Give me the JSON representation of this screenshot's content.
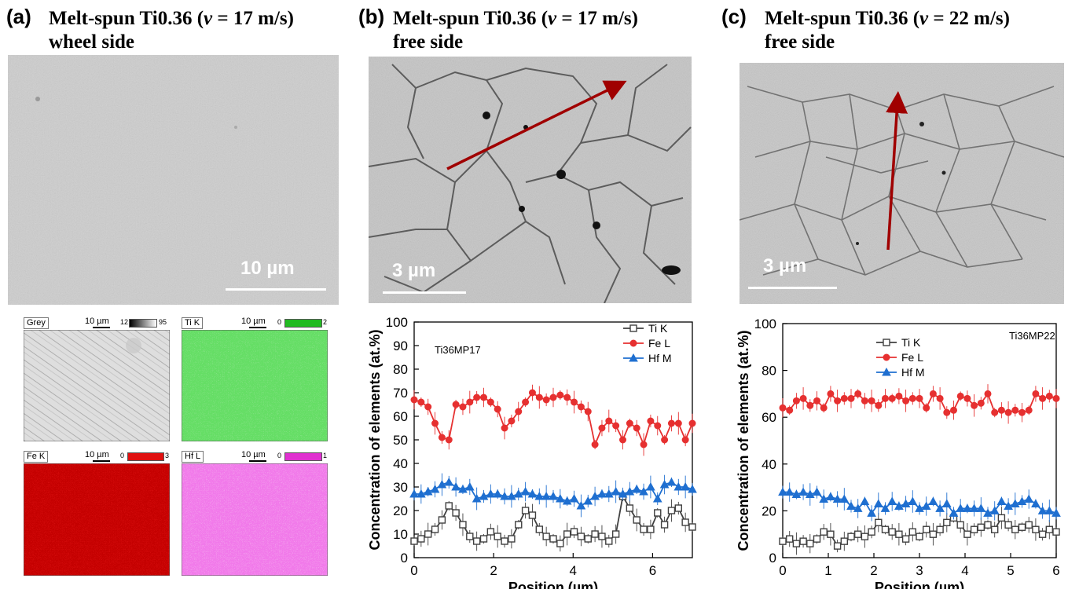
{
  "panels": [
    {
      "label": "(a)",
      "title_prefix": "Melt-spun Ti0.36 (",
      "title_var": "v",
      "title_eq": " = 17 m/s)",
      "title_line2": "wheel side",
      "scalebar": "10 µm"
    },
    {
      "label": "(b)",
      "title_prefix": "Melt-spun Ti0.36 (",
      "title_var": "v",
      "title_eq": " = 17 m/s)",
      "title_line2": "free side",
      "scalebar": "3 µm"
    },
    {
      "label": "(c)",
      "title_prefix": "Melt-spun Ti0.36 (",
      "title_var": "v",
      "title_eq": " = 22 m/s)",
      "title_line2": "free side",
      "scalebar": "3 µm"
    }
  ],
  "eds_maps": [
    {
      "label": "Grey",
      "scale": "10 µm",
      "range_min": "12",
      "range_max": "95",
      "color": "#8a8a8a"
    },
    {
      "label": "Ti K",
      "scale": "10 µm",
      "range_min": "0",
      "range_max": "2",
      "color": "#22bb22"
    },
    {
      "label": "Fe K",
      "scale": "10 µm",
      "range_min": "0",
      "range_max": "3",
      "color": "#e01010"
    },
    {
      "label": "Hf L",
      "scale": "10 µm",
      "range_min": "0",
      "range_max": "1",
      "color": "#e030d0"
    }
  ],
  "chart_data": [
    {
      "type": "line",
      "annotation": "Ti36MP17",
      "xlabel": "Position (µm)",
      "ylabel": "Concentration of elements (at.%)",
      "xlim": [
        0,
        7
      ],
      "ylim": [
        0,
        100
      ],
      "xticks": [
        0,
        2,
        4,
        6
      ],
      "yticks": [
        0,
        10,
        20,
        30,
        40,
        50,
        60,
        70,
        80,
        90,
        100
      ],
      "legend_position": "top-right",
      "x": [
        0,
        0.175,
        0.35,
        0.525,
        0.7,
        0.875,
        1.05,
        1.225,
        1.4,
        1.575,
        1.75,
        1.925,
        2.1,
        2.275,
        2.45,
        2.625,
        2.8,
        2.975,
        3.15,
        3.325,
        3.5,
        3.675,
        3.85,
        4.025,
        4.2,
        4.375,
        4.55,
        4.725,
        4.9,
        5.075,
        5.25,
        5.425,
        5.6,
        5.775,
        5.95,
        6.125,
        6.3,
        6.475,
        6.65,
        6.825,
        7.0
      ],
      "series": [
        {
          "name": "Ti K",
          "color": "#404040",
          "marker": "square",
          "values": [
            7,
            8,
            10,
            12,
            16,
            22,
            19,
            14,
            9,
            7,
            8,
            11,
            9,
            7,
            8,
            14,
            20,
            18,
            12,
            9,
            8,
            6,
            10,
            11,
            9,
            8,
            10,
            9,
            7,
            10,
            26,
            21,
            16,
            12,
            12,
            19,
            14,
            20,
            21,
            15,
            13
          ]
        },
        {
          "name": "Fe L",
          "color": "#e63030",
          "marker": "circle",
          "values": [
            67,
            66,
            64,
            57,
            51,
            50,
            65,
            64,
            66,
            68,
            68,
            66,
            63,
            55,
            58,
            62,
            66,
            70,
            68,
            67,
            68,
            69,
            68,
            66,
            64,
            62,
            48,
            55,
            58,
            56,
            50,
            57,
            55,
            48,
            58,
            56,
            50,
            57,
            57,
            50,
            57
          ]
        },
        {
          "name": "Hf M",
          "color": "#1f6fd0",
          "marker": "triangle",
          "values": [
            27,
            27,
            28,
            29,
            31,
            32,
            30,
            29,
            30,
            25,
            26,
            27,
            27,
            26,
            26,
            27,
            28,
            27,
            26,
            26,
            26,
            25,
            24,
            25,
            22,
            24,
            26,
            27,
            27,
            28,
            27,
            28,
            29,
            28,
            30,
            25,
            31,
            32,
            30,
            30,
            29
          ]
        }
      ]
    },
    {
      "type": "line",
      "annotation": "Ti36MP22",
      "xlabel": "Position (µm)",
      "ylabel": "Concentration of elements (at.%)",
      "xlim": [
        0,
        6
      ],
      "ylim": [
        0,
        100
      ],
      "xticks": [
        0,
        1,
        2,
        3,
        4,
        5,
        6
      ],
      "yticks": [
        0,
        20,
        40,
        60,
        80,
        100
      ],
      "legend_position": "top-center",
      "x": [
        0,
        0.15,
        0.3,
        0.45,
        0.6,
        0.75,
        0.9,
        1.05,
        1.2,
        1.35,
        1.5,
        1.65,
        1.8,
        1.95,
        2.1,
        2.25,
        2.4,
        2.55,
        2.7,
        2.85,
        3.0,
        3.15,
        3.3,
        3.45,
        3.6,
        3.75,
        3.9,
        4.05,
        4.2,
        4.35,
        4.5,
        4.65,
        4.8,
        4.95,
        5.1,
        5.25,
        5.4,
        5.55,
        5.7,
        5.85,
        6.0
      ],
      "series": [
        {
          "name": "Ti K",
          "color": "#404040",
          "marker": "square",
          "values": [
            7,
            8,
            6,
            7,
            6,
            8,
            11,
            10,
            5,
            7,
            9,
            10,
            9,
            11,
            15,
            12,
            11,
            10,
            8,
            11,
            9,
            12,
            10,
            12,
            15,
            17,
            14,
            10,
            12,
            13,
            14,
            12,
            17,
            14,
            12,
            13,
            14,
            12,
            10,
            12,
            11
          ]
        },
        {
          "name": "Fe L",
          "color": "#e63030",
          "marker": "circle",
          "values": [
            64,
            63,
            67,
            68,
            65,
            67,
            64,
            70,
            67,
            68,
            68,
            70,
            67,
            67,
            65,
            68,
            68,
            69,
            67,
            68,
            68,
            64,
            70,
            68,
            62,
            63,
            69,
            68,
            65,
            66,
            70,
            62,
            63,
            62,
            63,
            62,
            63,
            70,
            68,
            69,
            68
          ]
        },
        {
          "name": "Hf M",
          "color": "#1f6fd0",
          "marker": "triangle",
          "values": [
            28,
            28,
            27,
            28,
            27,
            28,
            25,
            26,
            25,
            25,
            22,
            21,
            24,
            19,
            23,
            21,
            24,
            22,
            23,
            24,
            21,
            22,
            24,
            21,
            23,
            19,
            21,
            21,
            21,
            21,
            19,
            20,
            24,
            22,
            23,
            24,
            25,
            23,
            20,
            20,
            19
          ]
        }
      ]
    }
  ]
}
